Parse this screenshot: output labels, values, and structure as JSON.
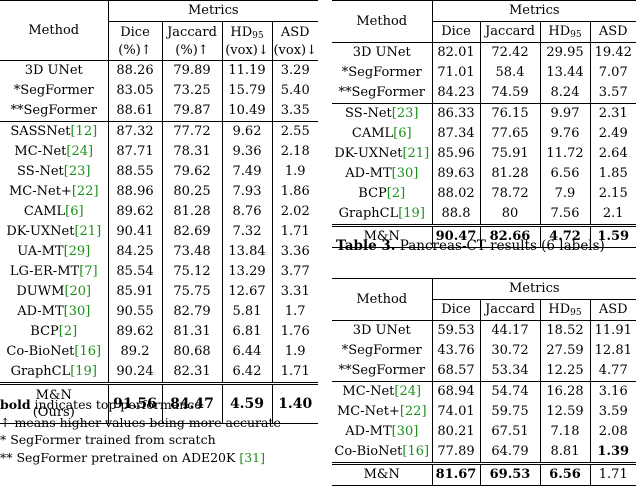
{
  "table_left": {
    "header": {
      "method": "Method",
      "metrics": "Metrics",
      "col1_line1": "Dice",
      "col1_line2": "(%)↑",
      "col2_line1": "Jaccard",
      "col2_line2": "(%)↑",
      "col3_line1": "HD",
      "col3_sub": "95",
      "col3_line2": "(vox)↓",
      "col4_line1": "ASD",
      "col4_line2": "(vox)↓"
    },
    "group1": [
      {
        "name": "3D UNet",
        "ref": "",
        "dice": "88.26",
        "jac": "79.89",
        "hd": "11.19",
        "asd": "3.29"
      },
      {
        "name": "*SegFormer",
        "ref": "",
        "dice": "83.05",
        "jac": "73.25",
        "hd": "15.79",
        "asd": "5.40"
      },
      {
        "name": "**SegFormer",
        "ref": "",
        "dice": "88.61",
        "jac": "79.87",
        "hd": "10.49",
        "asd": "3.35"
      }
    ],
    "group2": [
      {
        "name": "SASSNet",
        "ref": "[12]",
        "dice": "87.32",
        "jac": "77.72",
        "hd": "9.62",
        "asd": "2.55"
      },
      {
        "name": "MC-Net",
        "ref": "[24]",
        "dice": "87.71",
        "jac": "78.31",
        "hd": "9.36",
        "asd": "2.18"
      },
      {
        "name": "SS-Net",
        "ref": "[23]",
        "dice": "88.55",
        "jac": "79.62",
        "hd": "7.49",
        "asd": "1.9"
      },
      {
        "name": "MC-Net+",
        "ref": "[22]",
        "dice": "88.96",
        "jac": "80.25",
        "hd": "7.93",
        "asd": "1.86"
      },
      {
        "name": "CAML",
        "ref": "[6]",
        "dice": "89.62",
        "jac": "81.28",
        "hd": "8.76",
        "asd": "2.02"
      },
      {
        "name": "DK-UXNet",
        "ref": "[21]",
        "dice": "90.41",
        "jac": "82.69",
        "hd": "7.32",
        "asd": "1.71"
      },
      {
        "name": "UA-MT",
        "ref": "[29]",
        "dice": "84.25",
        "jac": "73.48",
        "hd": "13.84",
        "asd": "3.36"
      },
      {
        "name": "LG-ER-MT",
        "ref": "[7]",
        "dice": "85.54",
        "jac": "75.12",
        "hd": "13.29",
        "asd": "3.77"
      },
      {
        "name": "DUWM",
        "ref": "[20]",
        "dice": "85.91",
        "jac": "75.75",
        "hd": "12.67",
        "asd": "3.31"
      },
      {
        "name": "AD-MT",
        "ref": "[30]",
        "dice": "90.55",
        "jac": "82.79",
        "hd": "5.81",
        "asd": "1.7"
      },
      {
        "name": "BCP",
        "ref": "[2]",
        "dice": "89.62",
        "jac": "81.31",
        "hd": "6.81",
        "asd": "1.76"
      },
      {
        "name": "Co-BioNet",
        "ref": "[16]",
        "dice": "89.2",
        "jac": "80.68",
        "hd": "6.44",
        "asd": "1.9"
      },
      {
        "name": "GraphCL",
        "ref": "[19]",
        "dice": "90.24",
        "jac": "82.31",
        "hd": "6.42",
        "asd": "1.71"
      }
    ],
    "ours": {
      "name_line1": "M&N",
      "name_line2": "(Ours)",
      "dice": "91.56",
      "jac": "84.47",
      "hd": "4.59",
      "asd": "1.40"
    }
  },
  "notes": {
    "line1_bold": "bold",
    "line1_rest": " indicates top performance",
    "line2": "↑ means higher values being more accurate",
    "line3": "* SegFormer trained from scratch",
    "line4_text": "** SegFormer pretrained on ADE20K ",
    "line4_ref": "[31]"
  },
  "table_right_top": {
    "header": {
      "method": "Method",
      "metrics": "Metrics",
      "c1": "Dice",
      "c2": "Jaccard",
      "c3": "HD",
      "c3_sub": "95",
      "c4": "ASD"
    },
    "group1": [
      {
        "name": "3D UNet",
        "ref": "",
        "dice": "82.01",
        "jac": "72.42",
        "hd": "29.95",
        "asd": "19.42"
      },
      {
        "name": "*SegFormer",
        "ref": "",
        "dice": "71.01",
        "jac": "58.4",
        "hd": "13.44",
        "asd": "7.07"
      },
      {
        "name": "**SegFormer",
        "ref": "",
        "dice": "84.23",
        "jac": "74.59",
        "hd": "8.24",
        "asd": "3.57"
      }
    ],
    "group2": [
      {
        "name": "SS-Net",
        "ref": "[23]",
        "dice": "86.33",
        "jac": "76.15",
        "hd": "9.97",
        "asd": "2.31"
      },
      {
        "name": "CAML",
        "ref": "[6]",
        "dice": "87.34",
        "jac": "77.65",
        "hd": "9.76",
        "asd": "2.49"
      },
      {
        "name": "DK-UXNet",
        "ref": "[21]",
        "dice": "85.96",
        "jac": "75.91",
        "hd": "11.72",
        "asd": "2.64"
      },
      {
        "name": "AD-MT",
        "ref": "[30]",
        "dice": "89.63",
        "jac": "81.28",
        "hd": "6.56",
        "asd": "1.85"
      },
      {
        "name": "BCP",
        "ref": "[2]",
        "dice": "88.02",
        "jac": "78.72",
        "hd": "7.9",
        "asd": "2.15"
      },
      {
        "name": "GraphCL",
        "ref": "[19]",
        "dice": "88.8",
        "jac": "80",
        "hd": "7.56",
        "asd": "2.1"
      }
    ],
    "ours": {
      "name": "M&N",
      "dice": "90.47",
      "jac": "82.66",
      "hd": "4.72",
      "asd": "1.59"
    },
    "caption_label": "Table 3.",
    "caption_text": " Pancreas-CT results (6 labels)"
  },
  "table_right_bottom": {
    "header": {
      "method": "Method",
      "metrics": "Metrics",
      "c1": "Dice",
      "c2": "Jaccard",
      "c3": "HD",
      "c3_sub": "95",
      "c4": "ASD"
    },
    "group1": [
      {
        "name": "3D UNet",
        "ref": "",
        "dice": "59.53",
        "jac": "44.17",
        "hd": "18.52",
        "asd": "11.91"
      },
      {
        "name": "*SegFormer",
        "ref": "",
        "dice": "43.76",
        "jac": "30.72",
        "hd": "27.59",
        "asd": "12.81"
      },
      {
        "name": "**SegFormer",
        "ref": "",
        "dice": "68.57",
        "jac": "53.34",
        "hd": "12.25",
        "asd": "4.77"
      }
    ],
    "group2": [
      {
        "name": "MC-Net",
        "ref": "[24]",
        "dice": "68.94",
        "jac": "54.74",
        "hd": "16.28",
        "asd": "3.16"
      },
      {
        "name": "MC-Net+",
        "ref": "[22]",
        "dice": "74.01",
        "jac": "59.75",
        "hd": "12.59",
        "asd": "3.59"
      },
      {
        "name": "AD-MT",
        "ref": "[30]",
        "dice": "80.21",
        "jac": "67.51",
        "hd": "7.18",
        "asd": "2.08"
      },
      {
        "name": "Co-BioNet",
        "ref": "[16]",
        "dice": "77.89",
        "jac": "64.79",
        "hd": "8.81",
        "asd": "1.39",
        "asd_bold": true
      }
    ],
    "ours": {
      "name": "M&N",
      "dice": "81.67",
      "jac": "69.53",
      "hd": "6.56",
      "asd": "1.71"
    }
  }
}
